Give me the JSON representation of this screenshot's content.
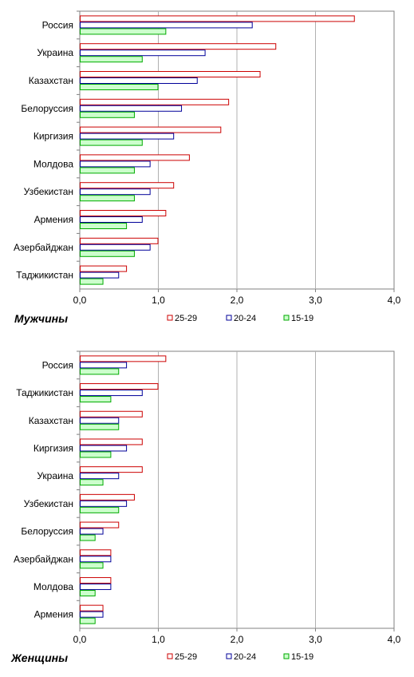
{
  "chart_data": [
    {
      "type": "bar",
      "orientation": "horizontal",
      "title": "Мужчины",
      "categories": [
        "Россия",
        "Украина",
        "Казахстан",
        "Белоруссия",
        "Киргизия",
        "Молдова",
        "Узбекистан",
        "Армения",
        "Азербайджан",
        "Таджикистан"
      ],
      "series": [
        {
          "name": "25-29",
          "values": [
            3.5,
            2.5,
            2.3,
            1.9,
            1.8,
            1.4,
            1.2,
            1.1,
            1.0,
            0.6
          ]
        },
        {
          "name": "20-24",
          "values": [
            2.2,
            1.6,
            1.5,
            1.3,
            1.2,
            0.9,
            0.9,
            0.8,
            0.9,
            0.5
          ]
        },
        {
          "name": "15-19",
          "values": [
            1.1,
            0.8,
            1.0,
            0.7,
            0.8,
            0.7,
            0.7,
            0.6,
            0.7,
            0.3
          ]
        }
      ],
      "xlim": [
        0,
        4
      ],
      "xticks": [
        "0,0",
        "1,0",
        "2,0",
        "3,0",
        "4,0"
      ],
      "grid": "vertical",
      "legend": "bottom"
    },
    {
      "type": "bar",
      "orientation": "horizontal",
      "title": "Женщины",
      "categories": [
        "Россия",
        "Таджикистан",
        "Казахстан",
        "Киргизия",
        "Украина",
        "Узбекистан",
        "Белоруссия",
        "Азербайджан",
        "Молдова",
        "Армения"
      ],
      "series": [
        {
          "name": "25-29",
          "values": [
            1.1,
            1.0,
            0.8,
            0.8,
            0.8,
            0.7,
            0.5,
            0.4,
            0.4,
            0.3
          ]
        },
        {
          "name": "20-24",
          "values": [
            0.6,
            0.8,
            0.5,
            0.6,
            0.5,
            0.6,
            0.3,
            0.4,
            0.4,
            0.3
          ]
        },
        {
          "name": "15-19",
          "values": [
            0.5,
            0.4,
            0.5,
            0.4,
            0.3,
            0.5,
            0.2,
            0.3,
            0.2,
            0.2
          ]
        }
      ],
      "xlim": [
        0,
        4
      ],
      "xticks": [
        "0,0",
        "1,0",
        "2,0",
        "3,0",
        "4,0"
      ],
      "grid": "vertical",
      "legend": "bottom"
    }
  ],
  "colors": {
    "series_stroke": [
      "#cc0000",
      "#000099",
      "#00aa00"
    ],
    "series_fill": [
      "#ffffff",
      "#ffffff",
      "#ccffcc"
    ],
    "grid": "#b0b0b0",
    "frame": "#808080"
  }
}
